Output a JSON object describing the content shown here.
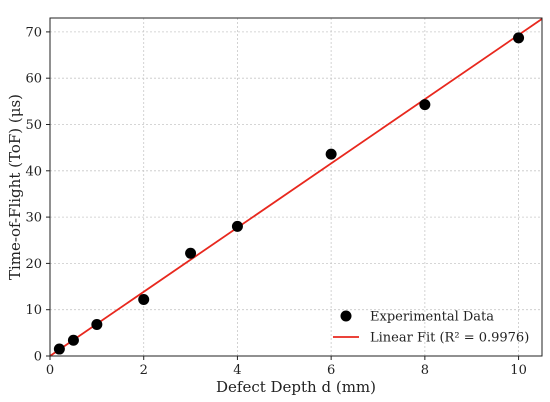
{
  "chart_data": {
    "type": "scatter",
    "title": "",
    "xlabel": "Defect Depth d (mm)",
    "ylabel": "Time-of-Flight (ToF) (μs)",
    "xlim": [
      0,
      10.5
    ],
    "ylim": [
      0,
      73
    ],
    "x_ticks": [
      "0",
      "2",
      "4",
      "6",
      "8",
      "10"
    ],
    "y_ticks": [
      "0",
      "10",
      "20",
      "30",
      "40",
      "50",
      "60",
      "70"
    ],
    "grid": true,
    "legend_position": "bottom-right",
    "series": [
      {
        "name": "Experimental Data",
        "kind": "scatter",
        "color": "#000000",
        "x": [
          0.2,
          0.5,
          1.0,
          2.0,
          3.0,
          4.0,
          6.0,
          8.0,
          10.0
        ],
        "y": [
          1.5,
          3.4,
          6.8,
          12.2,
          22.2,
          28.0,
          43.6,
          54.3,
          68.7
        ]
      },
      {
        "name": "Linear Fit (R² = 0.9976)",
        "kind": "line",
        "color": "#e8281e",
        "x": [
          0,
          10.5
        ],
        "y": [
          0.0,
          72.8
        ]
      }
    ]
  }
}
